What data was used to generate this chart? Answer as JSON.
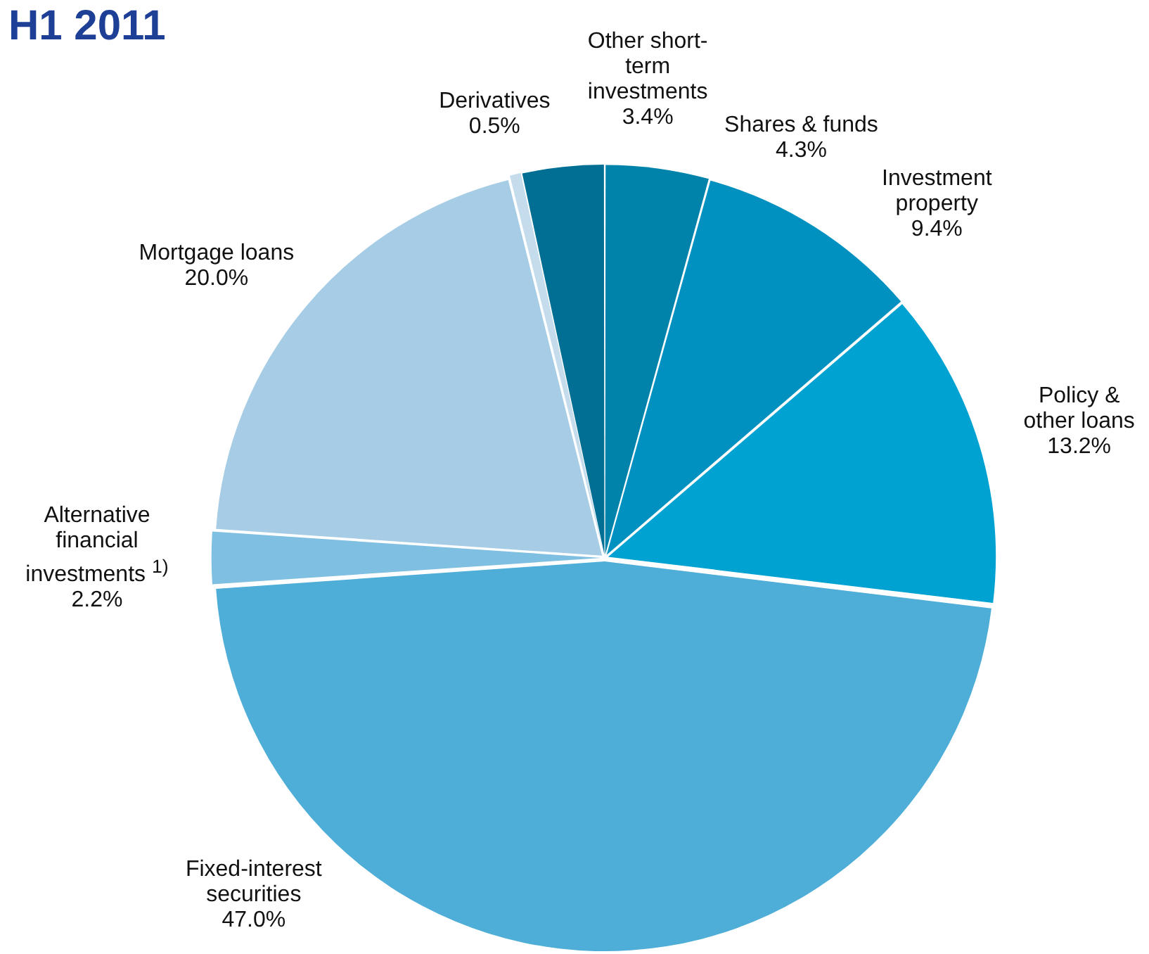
{
  "chart_data": {
    "type": "pie",
    "title": "H1 2011",
    "categories": [
      "Shares & funds",
      "Investment property",
      "Policy & other loans",
      "Fixed-interest securities",
      "Alternative financial investments $^{1)}$",
      "Mortgage loans",
      "Derivatives",
      "Other short-term investments"
    ],
    "values": [
      4.3,
      9.4,
      13.2,
      47.0,
      2.2,
      20.0,
      0.5,
      3.4
    ],
    "value_labels": [
      "4.3%",
      "9.4%",
      "13.2%",
      "47.0%",
      "2.2%",
      "20.0%",
      "0.5%",
      "3.4%"
    ],
    "colors": [
      "#0083ab",
      "#0091c0",
      "#00a2d2",
      "#4eaed8",
      "#7fbfe1",
      "#a6cde5",
      "#c5dcec",
      "#006f93"
    ],
    "legend": false
  }
}
